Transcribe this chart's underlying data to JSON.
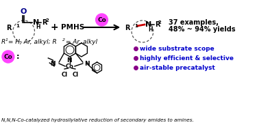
{
  "bg_color": "#ffffff",
  "magenta": "#FF44FF",
  "dark_blue": "#00008B",
  "red": "#CC0000",
  "black": "#000000",
  "gray": "#666666",
  "bullet_color": "#880088",
  "bullet_text_color": "#0000CC",
  "r1_label1": "R",
  "r1_sup": "1",
  "r1_label2": " = H, Ar, alkyl; R",
  "r2_sup": "2",
  "r1_label3": " = Ar, alkyl",
  "examples_text": "37 examples,",
  "yields_text": "48% ~ 94% yields",
  "bullet1": "wide substrate scope",
  "bullet2": "highly efficient & selective",
  "bullet3": "air-stable precatalyst",
  "footer": "N,N,N-Co-catalyzed hydrosilylative reduction of secondary amides to amines.",
  "pmhs": "PMHS",
  "co_label": "Co"
}
